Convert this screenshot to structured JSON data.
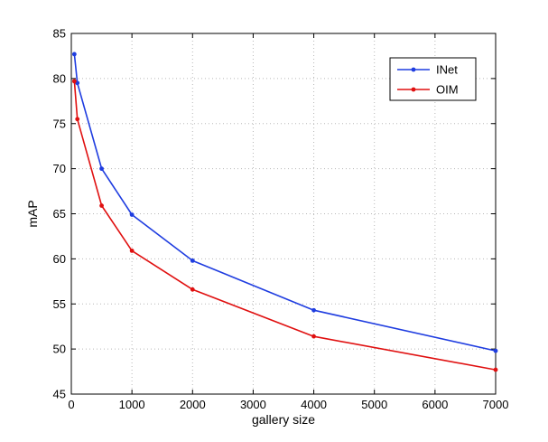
{
  "chart_data": {
    "type": "line",
    "xlabel": "gallery size",
    "ylabel": "mAP",
    "xlim": [
      0,
      7000
    ],
    "ylim": [
      45,
      85
    ],
    "xticks": [
      0,
      1000,
      2000,
      3000,
      4000,
      5000,
      6000,
      7000
    ],
    "yticks": [
      45,
      50,
      55,
      60,
      65,
      70,
      75,
      80,
      85
    ],
    "grid": true,
    "legend_position": "top-right",
    "series": [
      {
        "name": "INet",
        "color": "#1f3de0",
        "x": [
          50,
          100,
          500,
          1000,
          2000,
          4000,
          7000
        ],
        "values": [
          82.7,
          79.5,
          70.0,
          64.9,
          59.8,
          54.3,
          49.8
        ]
      },
      {
        "name": "OIM",
        "color": "#e01010",
        "x": [
          50,
          100,
          500,
          1000,
          2000,
          4000,
          7000
        ],
        "values": [
          79.7,
          75.5,
          65.9,
          60.9,
          56.6,
          51.4,
          47.7
        ]
      }
    ]
  }
}
